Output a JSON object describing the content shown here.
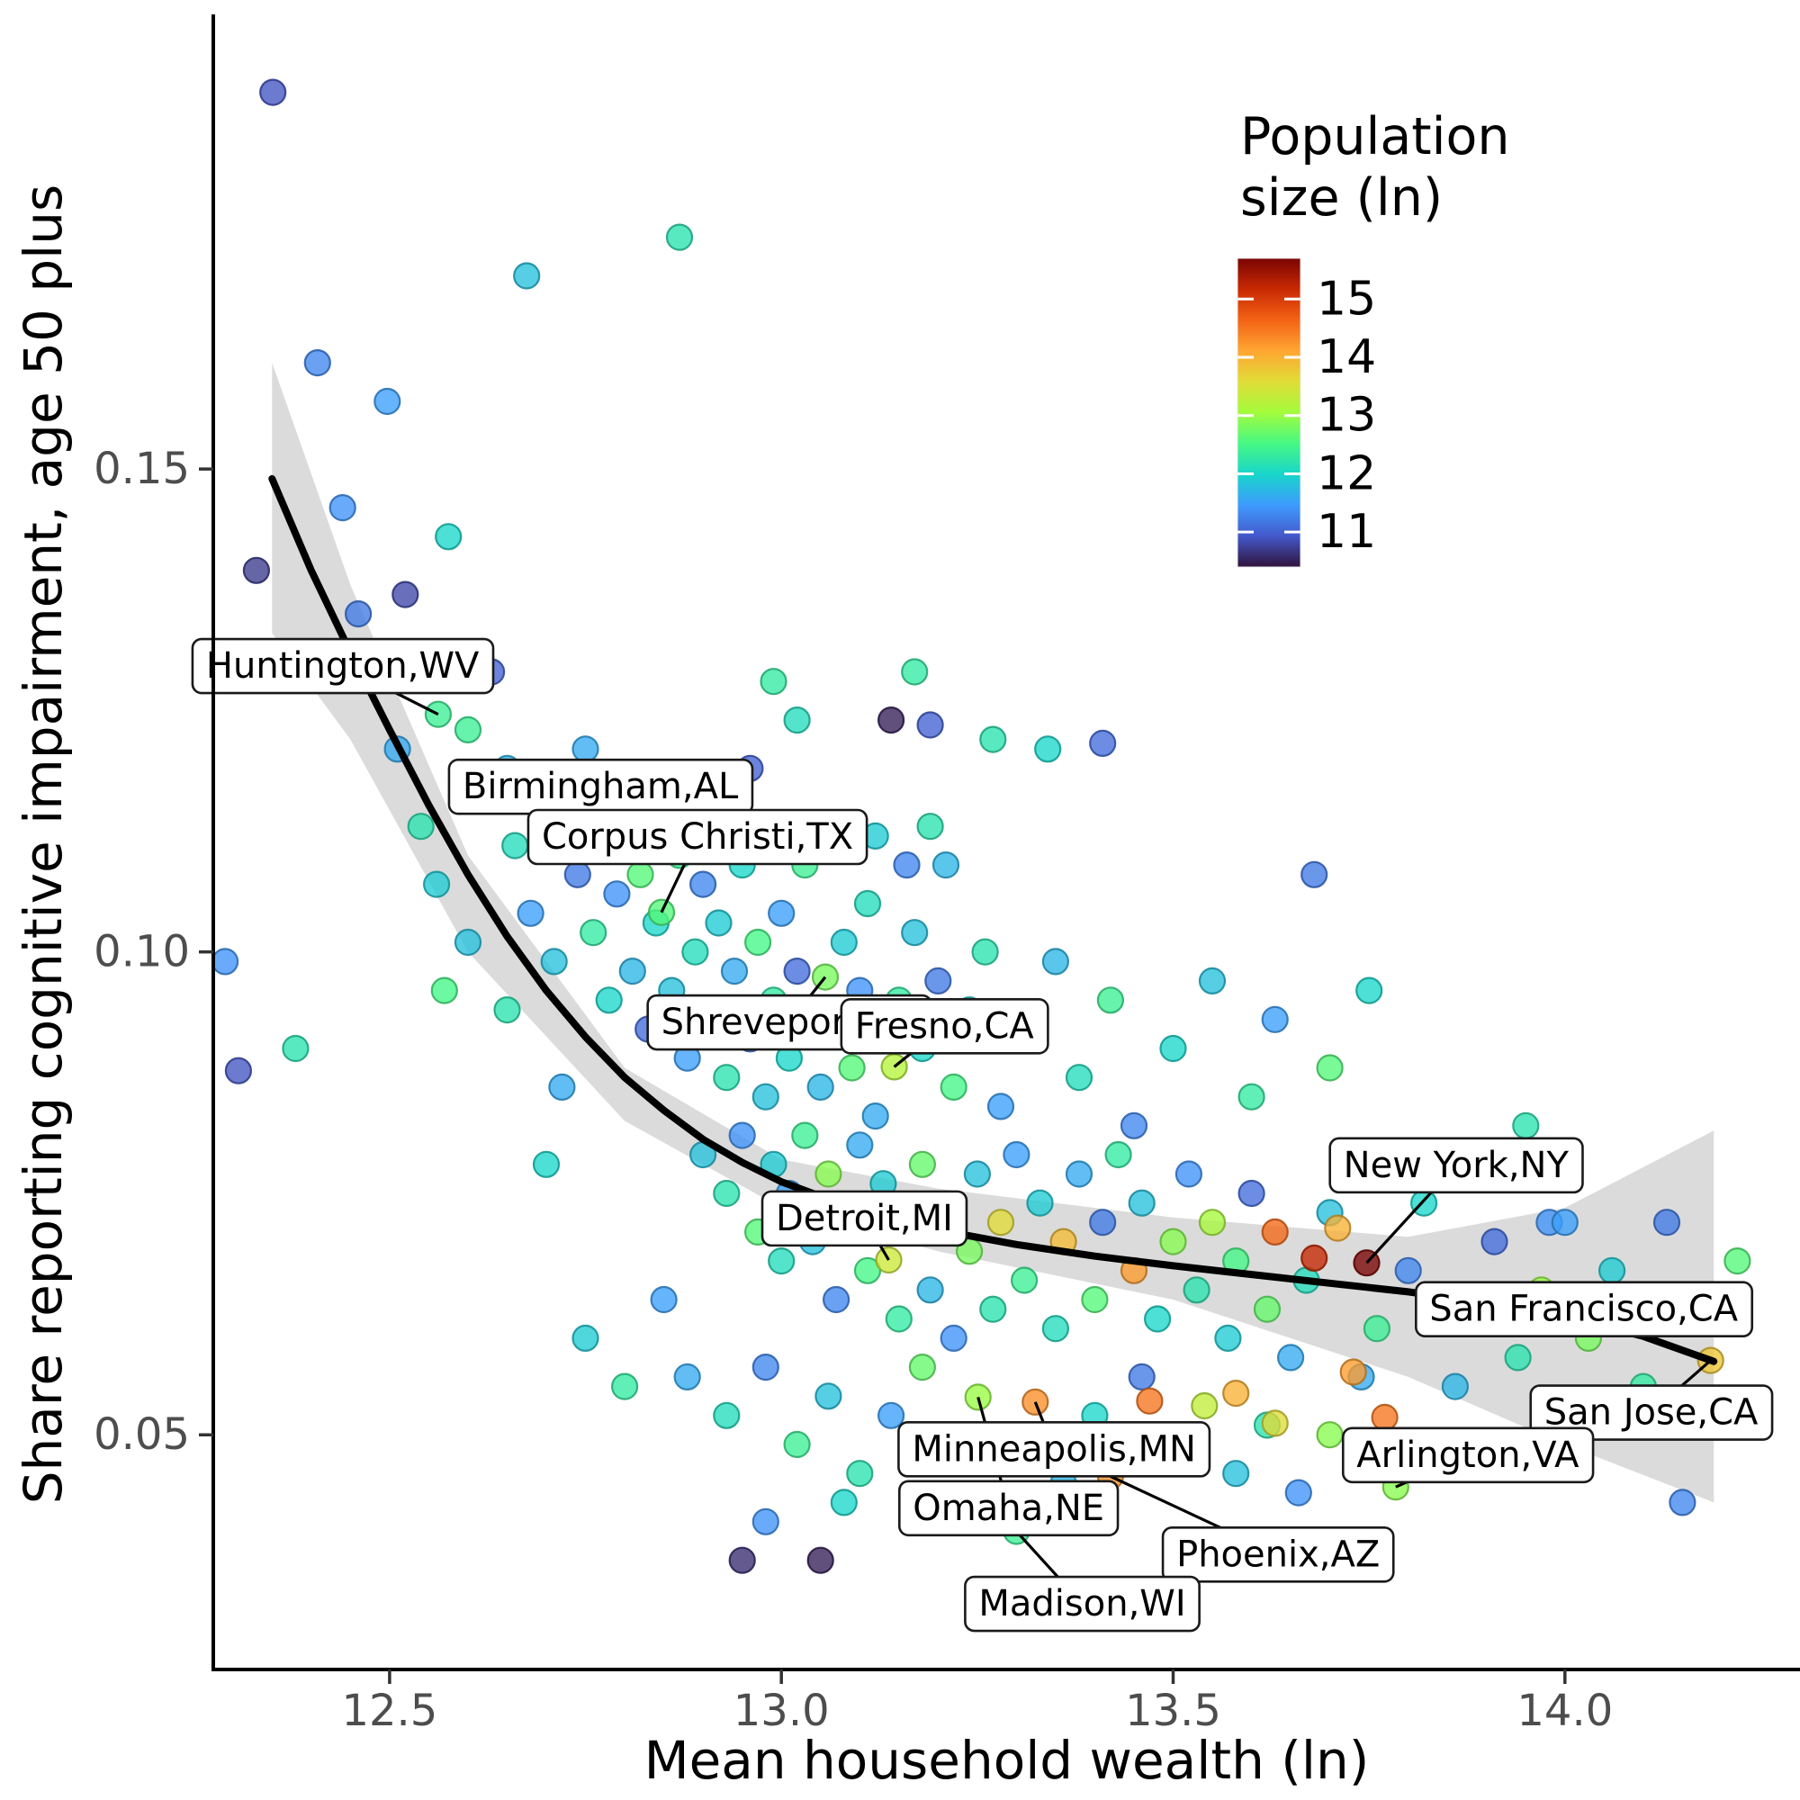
{
  "figure": {
    "x_axis_title": "Mean household wealth (ln)",
    "y_axis_title": "Share reporting cognitive impairment, age 50 plus"
  },
  "legend": {
    "title_line1": "Population",
    "title_line2": "size (ln)",
    "title": "Population size (ln)",
    "ticks": [
      "15",
      "14",
      "13",
      "12",
      "11"
    ],
    "tick_values": [
      15,
      14,
      13,
      12,
      11
    ],
    "domain": [
      10.4,
      15.7
    ]
  },
  "colormap": {
    "name": "turbo",
    "stops": [
      [
        0.0,
        "#30123B"
      ],
      [
        0.1,
        "#4458CB"
      ],
      [
        0.2,
        "#3E9BFE"
      ],
      [
        0.3,
        "#18D6CB"
      ],
      [
        0.4,
        "#46F884"
      ],
      [
        0.5,
        "#A2FC3C"
      ],
      [
        0.6,
        "#E1DD37"
      ],
      [
        0.7,
        "#FEA632"
      ],
      [
        0.8,
        "#F36315"
      ],
      [
        0.9,
        "#C92903"
      ],
      [
        1.0,
        "#7A0403"
      ]
    ]
  },
  "style": {
    "band_color": "#bdbdbd",
    "trend_color": "#000000",
    "tick_label_color": "#4d4d4d",
    "axis_color": "#000000",
    "label_border_color": "#1a1a1a",
    "label_fill": "#ffffff"
  },
  "chart_data": {
    "type": "scatter",
    "title": "",
    "xlabel": "Mean household wealth (ln)",
    "ylabel": "Share reporting cognitive impairment, age 50 plus",
    "color_label": "Population size (ln)",
    "xlim": [
      12.275,
      14.3
    ],
    "ylim": [
      0.0257,
      0.1967
    ],
    "x_ticks": [
      "12.5",
      "13.0",
      "13.5",
      "14.0"
    ],
    "x_tick_values": [
      12.5,
      13.0,
      13.5,
      14.0
    ],
    "y_ticks": [
      "0.15",
      "0.10",
      "0.05"
    ],
    "y_tick_values": [
      0.15,
      0.1,
      0.05
    ],
    "grid": false,
    "legend_position": "top-right-inside",
    "points": [
      [
        12.351,
        0.189,
        10.9
      ],
      [
        12.408,
        0.161,
        11.3
      ],
      [
        12.497,
        0.157,
        11.5
      ],
      [
        12.675,
        0.17,
        11.8
      ],
      [
        12.44,
        0.146,
        11.4
      ],
      [
        12.52,
        0.137,
        10.8
      ],
      [
        12.46,
        0.135,
        11.2
      ],
      [
        12.575,
        0.143,
        12.0
      ],
      [
        12.29,
        0.099,
        11.4
      ],
      [
        12.307,
        0.0877,
        10.9
      ],
      [
        12.33,
        0.1395,
        10.7
      ],
      [
        12.38,
        0.09,
        12.2
      ],
      [
        12.562,
        0.1246,
        12.4
      ],
      [
        12.51,
        0.121,
        11.6
      ],
      [
        12.54,
        0.113,
        12.2
      ],
      [
        12.56,
        0.107,
        11.9
      ],
      [
        12.6,
        0.123,
        12.4
      ],
      [
        12.62,
        0.116,
        11.3
      ],
      [
        12.63,
        0.129,
        11.0
      ],
      [
        12.65,
        0.119,
        11.7
      ],
      [
        12.66,
        0.111,
        12.1
      ],
      [
        12.68,
        0.104,
        11.5
      ],
      [
        12.698,
        0.1111,
        12.0
      ],
      [
        12.71,
        0.099,
        11.8
      ],
      [
        12.72,
        0.118,
        12.5
      ],
      [
        12.74,
        0.108,
        11.2
      ],
      [
        12.75,
        0.121,
        11.6
      ],
      [
        12.76,
        0.102,
        12.3
      ],
      [
        12.77,
        0.113,
        11.9
      ],
      [
        12.78,
        0.095,
        12.0
      ],
      [
        12.79,
        0.106,
        11.4
      ],
      [
        12.8,
        0.116,
        12.2
      ],
      [
        12.81,
        0.098,
        11.7
      ],
      [
        12.82,
        0.108,
        12.6
      ],
      [
        12.83,
        0.092,
        11.1
      ],
      [
        12.84,
        0.103,
        12.0
      ],
      [
        12.847,
        0.1041,
        12.6
      ],
      [
        12.86,
        0.096,
        11.8
      ],
      [
        12.87,
        0.174,
        12.2
      ],
      [
        12.87,
        0.11,
        12.4
      ],
      [
        12.88,
        0.089,
        11.5
      ],
      [
        12.89,
        0.1,
        12.1
      ],
      [
        12.9,
        0.107,
        11.3
      ],
      [
        12.91,
        0.094,
        12.7
      ],
      [
        12.92,
        0.103,
        11.9
      ],
      [
        12.93,
        0.087,
        12.2
      ],
      [
        12.94,
        0.098,
        11.6
      ],
      [
        12.95,
        0.109,
        12.0
      ],
      [
        12.96,
        0.091,
        11.2
      ],
      [
        12.97,
        0.101,
        12.5
      ],
      [
        12.98,
        0.085,
        11.8
      ],
      [
        12.99,
        0.095,
        12.3
      ],
      [
        13.0,
        0.104,
        11.5
      ],
      [
        13.01,
        0.089,
        12.0
      ],
      [
        13.02,
        0.098,
        11.1
      ],
      [
        13.03,
        0.109,
        12.4
      ],
      [
        13.056,
        0.0974,
        12.8
      ],
      [
        13.05,
        0.086,
        11.7
      ],
      [
        13.06,
        0.093,
        12.2
      ],
      [
        13.08,
        0.101,
        11.9
      ],
      [
        13.09,
        0.088,
        12.6
      ],
      [
        13.1,
        0.096,
        11.4
      ],
      [
        13.11,
        0.105,
        12.1
      ],
      [
        13.12,
        0.083,
        11.6
      ],
      [
        13.144,
        0.0881,
        13.2
      ],
      [
        13.15,
        0.095,
        12.3
      ],
      [
        13.17,
        0.102,
        11.8
      ],
      [
        13.18,
        0.09,
        12.0
      ],
      [
        13.2,
        0.097,
        11.2
      ],
      [
        13.22,
        0.086,
        12.5
      ],
      [
        13.24,
        0.094,
        11.9
      ],
      [
        13.26,
        0.1,
        12.2
      ],
      [
        13.28,
        0.084,
        11.5
      ],
      [
        13.31,
        0.092,
        12.8
      ],
      [
        13.35,
        0.099,
        11.7
      ],
      [
        13.38,
        0.087,
        12.1
      ],
      [
        13.42,
        0.095,
        12.4
      ],
      [
        13.45,
        0.082,
        11.3
      ],
      [
        13.5,
        0.09,
        12.0
      ],
      [
        13.55,
        0.097,
        11.8
      ],
      [
        13.6,
        0.085,
        12.3
      ],
      [
        13.63,
        0.093,
        11.5
      ],
      [
        13.68,
        0.108,
        11.2
      ],
      [
        13.7,
        0.088,
        12.6
      ],
      [
        13.75,
        0.096,
        12.0
      ],
      [
        13.95,
        0.082,
        12.2
      ],
      [
        13.98,
        0.072,
        11.4
      ],
      [
        13.14,
        0.124,
        10.5
      ],
      [
        13.19,
        0.1235,
        11.0
      ],
      [
        13.17,
        0.129,
        12.3
      ],
      [
        13.27,
        0.122,
        12.2
      ],
      [
        13.34,
        0.121,
        12.0
      ],
      [
        13.41,
        0.1216,
        11.1
      ],
      [
        12.96,
        0.119,
        11.0
      ],
      [
        13.0,
        0.113,
        10.8
      ],
      [
        12.93,
        0.116,
        11.6
      ],
      [
        13.02,
        0.124,
        12.1
      ],
      [
        12.99,
        0.128,
        12.3
      ],
      [
        13.12,
        0.112,
        11.9
      ],
      [
        13.16,
        0.109,
        11.3
      ],
      [
        13.19,
        0.113,
        12.2
      ],
      [
        13.21,
        0.109,
        11.7
      ],
      [
        12.9,
        0.079,
        11.8
      ],
      [
        12.93,
        0.075,
        12.2
      ],
      [
        12.95,
        0.081,
        11.4
      ],
      [
        12.97,
        0.071,
        12.6
      ],
      [
        12.99,
        0.078,
        11.9
      ],
      [
        13.0,
        0.068,
        12.1
      ],
      [
        13.01,
        0.075,
        11.5
      ],
      [
        13.03,
        0.081,
        12.4
      ],
      [
        13.04,
        0.07,
        11.8
      ],
      [
        13.06,
        0.077,
        12.9
      ],
      [
        13.07,
        0.064,
        11.3
      ],
      [
        13.08,
        0.073,
        12.2
      ],
      [
        13.1,
        0.08,
        11.6
      ],
      [
        13.11,
        0.067,
        12.5
      ],
      [
        13.137,
        0.0681,
        13.4
      ],
      [
        13.13,
        0.076,
        11.9
      ],
      [
        13.15,
        0.062,
        12.3
      ],
      [
        13.16,
        0.071,
        11.1
      ],
      [
        13.18,
        0.078,
        12.7
      ],
      [
        13.19,
        0.065,
        11.7
      ],
      [
        13.21,
        0.073,
        12.0
      ],
      [
        13.22,
        0.06,
        11.4
      ],
      [
        13.24,
        0.069,
        12.8
      ],
      [
        13.25,
        0.077,
        11.8
      ],
      [
        13.27,
        0.063,
        12.2
      ],
      [
        13.28,
        0.072,
        13.6
      ],
      [
        13.3,
        0.079,
        11.5
      ],
      [
        13.31,
        0.066,
        12.4
      ],
      [
        13.33,
        0.074,
        11.9
      ],
      [
        13.35,
        0.061,
        12.1
      ],
      [
        13.36,
        0.07,
        13.9
      ],
      [
        13.38,
        0.077,
        11.6
      ],
      [
        13.4,
        0.064,
        12.6
      ],
      [
        13.41,
        0.072,
        11.2
      ],
      [
        13.43,
        0.079,
        12.3
      ],
      [
        13.45,
        0.067,
        14.2
      ],
      [
        13.46,
        0.074,
        11.8
      ],
      [
        13.48,
        0.062,
        12.0
      ],
      [
        13.5,
        0.07,
        12.9
      ],
      [
        13.52,
        0.077,
        11.4
      ],
      [
        13.53,
        0.065,
        12.2
      ],
      [
        13.55,
        0.072,
        13.1
      ],
      [
        13.57,
        0.06,
        11.9
      ],
      [
        13.58,
        0.068,
        12.5
      ],
      [
        13.6,
        0.075,
        11.1
      ],
      [
        13.62,
        0.063,
        12.7
      ],
      [
        13.63,
        0.071,
        14.6
      ],
      [
        13.65,
        0.058,
        11.6
      ],
      [
        13.67,
        0.066,
        12.1
      ],
      [
        13.7,
        0.073,
        11.8
      ],
      [
        13.68,
        0.0683,
        15.2
      ],
      [
        13.71,
        0.0714,
        14.0
      ],
      [
        13.747,
        0.0678,
        15.9
      ],
      [
        13.76,
        0.061,
        12.4
      ],
      [
        13.784,
        0.0446,
        12.9
      ],
      [
        13.8,
        0.067,
        11.3
      ],
      [
        13.82,
        0.074,
        12.0
      ],
      [
        13.844,
        0.0616,
        13.7
      ],
      [
        13.86,
        0.055,
        11.7
      ],
      [
        13.88,
        0.063,
        12.5
      ],
      [
        13.91,
        0.07,
        11.1
      ],
      [
        13.94,
        0.058,
        12.2
      ],
      [
        13.97,
        0.065,
        13.0
      ],
      [
        14.0,
        0.072,
        11.5
      ],
      [
        14.03,
        0.06,
        12.8
      ],
      [
        14.06,
        0.067,
        11.9
      ],
      [
        14.1,
        0.055,
        12.3
      ],
      [
        14.13,
        0.072,
        11.2
      ],
      [
        14.16,
        0.063,
        12.0
      ],
      [
        14.186,
        0.0577,
        13.8
      ],
      [
        14.22,
        0.068,
        12.6
      ],
      [
        12.88,
        0.056,
        11.6
      ],
      [
        12.93,
        0.052,
        12.1
      ],
      [
        12.98,
        0.057,
        11.3
      ],
      [
        13.02,
        0.049,
        12.4
      ],
      [
        13.06,
        0.054,
        11.8
      ],
      [
        13.1,
        0.046,
        12.2
      ],
      [
        13.14,
        0.052,
        11.5
      ],
      [
        13.18,
        0.057,
        12.7
      ],
      [
        13.22,
        0.048,
        11.9
      ],
      [
        13.251,
        0.0539,
        13.0
      ],
      [
        13.3,
        0.04,
        12.4
      ],
      [
        13.324,
        0.0534,
        14.3
      ],
      [
        13.36,
        0.045,
        11.7
      ],
      [
        13.4,
        0.052,
        12.0
      ],
      [
        13.42,
        0.0457,
        14.3
      ],
      [
        13.46,
        0.056,
        11.2
      ],
      [
        13.5,
        0.048,
        12.5
      ],
      [
        13.54,
        0.053,
        13.3
      ],
      [
        13.58,
        0.046,
        11.8
      ],
      [
        13.62,
        0.051,
        12.2
      ],
      [
        13.66,
        0.044,
        11.4
      ],
      [
        13.7,
        0.05,
        12.9
      ],
      [
        13.74,
        0.056,
        11.6
      ],
      [
        13.47,
        0.0535,
        14.5
      ],
      [
        13.73,
        0.0565,
        14.2
      ],
      [
        13.77,
        0.0518,
        14.5
      ],
      [
        13.63,
        0.0512,
        13.6
      ],
      [
        13.58,
        0.0543,
        14.0
      ],
      [
        12.95,
        0.037,
        10.6
      ],
      [
        13.05,
        0.037,
        10.5
      ],
      [
        12.98,
        0.041,
        11.4
      ],
      [
        13.08,
        0.043,
        12.0
      ],
      [
        14.15,
        0.043,
        11.3
      ],
      [
        12.75,
        0.06,
        11.9
      ],
      [
        12.8,
        0.055,
        12.3
      ],
      [
        12.85,
        0.064,
        11.5
      ],
      [
        12.7,
        0.078,
        12.0
      ],
      [
        12.72,
        0.086,
        11.6
      ],
      [
        12.65,
        0.094,
        12.2
      ],
      [
        12.6,
        0.101,
        11.8
      ],
      [
        12.57,
        0.096,
        12.5
      ]
    ],
    "trend": [
      [
        12.35,
        0.149
      ],
      [
        12.4,
        0.1395
      ],
      [
        12.45,
        0.131
      ],
      [
        12.5,
        0.123
      ],
      [
        12.55,
        0.1152
      ],
      [
        12.6,
        0.108
      ],
      [
        12.65,
        0.1016
      ],
      [
        12.7,
        0.096
      ],
      [
        12.75,
        0.0912
      ],
      [
        12.8,
        0.087
      ],
      [
        12.85,
        0.0836
      ],
      [
        12.9,
        0.0806
      ],
      [
        12.95,
        0.0782
      ],
      [
        13.0,
        0.0762
      ],
      [
        13.1,
        0.0732
      ],
      [
        13.2,
        0.0712
      ],
      [
        13.3,
        0.0697
      ],
      [
        13.4,
        0.0685
      ],
      [
        13.5,
        0.0675
      ],
      [
        13.6,
        0.0666
      ],
      [
        13.7,
        0.0657
      ],
      [
        13.8,
        0.0648
      ],
      [
        13.9,
        0.0637
      ],
      [
        14.0,
        0.0622
      ],
      [
        14.1,
        0.0602
      ],
      [
        14.19,
        0.0576
      ]
    ],
    "ci_band": {
      "x": [
        12.35,
        12.45,
        12.6,
        12.8,
        13.0,
        13.2,
        13.5,
        13.8,
        14.0,
        14.19
      ],
      "upper": [
        0.161,
        0.138,
        0.11,
        0.088,
        0.0785,
        0.0755,
        0.0725,
        0.0705,
        0.0735,
        0.0815
      ],
      "lower": [
        0.133,
        0.122,
        0.1,
        0.0825,
        0.0735,
        0.069,
        0.064,
        0.056,
        0.049,
        0.043
      ]
    },
    "city_labels": [
      {
        "text": "Huntington,WV",
        "lx": 12.44,
        "ly": 0.1296,
        "px": 12.562,
        "py": 0.1246
      },
      {
        "text": "Birmingham,AL",
        "lx": 12.769,
        "ly": 0.1171,
        "px": 12.698,
        "py": 0.1111
      },
      {
        "text": "Corpus Christi,TX",
        "lx": 12.893,
        "ly": 0.1119,
        "px": 12.847,
        "py": 0.1041
      },
      {
        "text": "Shreveport,LA",
        "lx": 13.01,
        "ly": 0.0927,
        "px": 13.056,
        "py": 0.0974
      },
      {
        "text": "Fresno,CA",
        "lx": 13.208,
        "ly": 0.0923,
        "px": 13.144,
        "py": 0.0881
      },
      {
        "text": "Detroit,MI",
        "lx": 13.106,
        "ly": 0.0724,
        "px": 13.137,
        "py": 0.0681
      },
      {
        "text": "New York,NY",
        "lx": 13.861,
        "ly": 0.0779,
        "px": 13.747,
        "py": 0.0678
      },
      {
        "text": "San Francisco,CA",
        "lx": 14.024,
        "ly": 0.063,
        "px": 13.844,
        "py": 0.0616
      },
      {
        "text": "San Jose,CA",
        "lx": 14.11,
        "ly": 0.0523,
        "px": 14.186,
        "py": 0.0577
      },
      {
        "text": "Arlington,VA",
        "lx": 13.876,
        "ly": 0.0479,
        "px": 13.784,
        "py": 0.0446
      },
      {
        "text": "Minneapolis,MN",
        "lx": 13.348,
        "ly": 0.0485,
        "px": 13.324,
        "py": 0.0534
      },
      {
        "text": "Omaha,NE",
        "lx": 13.29,
        "ly": 0.0424,
        "px": 13.251,
        "py": 0.0539
      },
      {
        "text": "Phoenix,AZ",
        "lx": 13.634,
        "ly": 0.0376,
        "px": 13.42,
        "py": 0.0457
      },
      {
        "text": "Madison,WI",
        "lx": 13.384,
        "ly": 0.0325,
        "px": 13.3,
        "py": 0.04
      }
    ]
  }
}
